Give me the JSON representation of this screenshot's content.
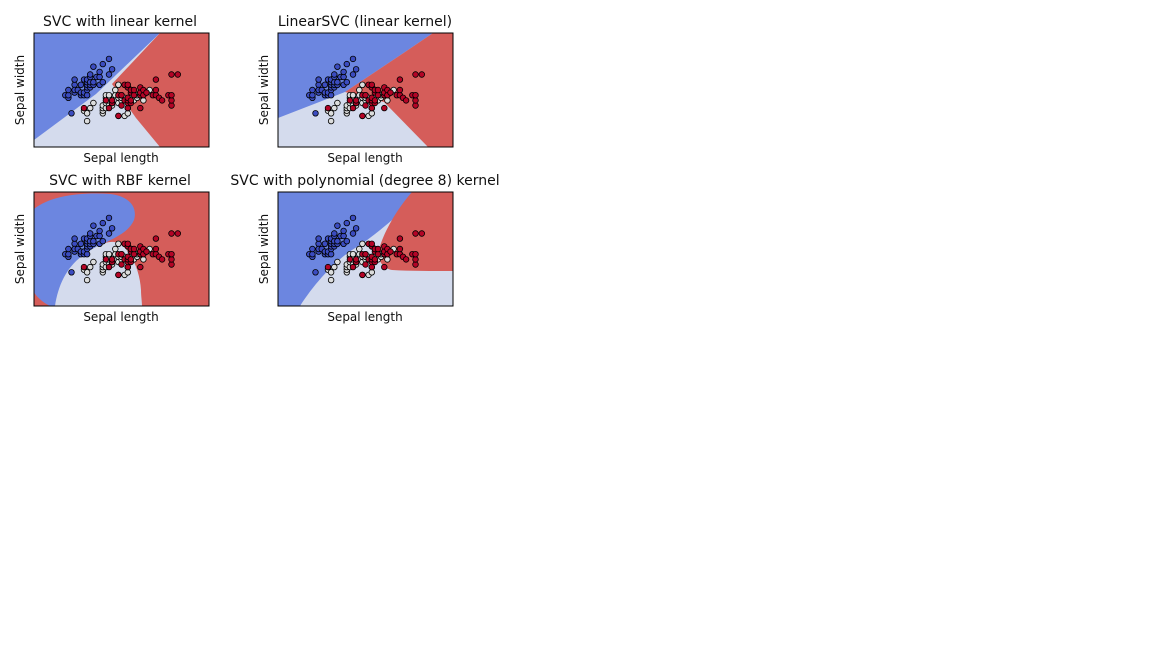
{
  "chart_data": [
    {
      "type": "scatter",
      "title": "SVC with linear kernel",
      "xlabel": "Sepal length",
      "ylabel": "Sepal width",
      "xticks": "none",
      "yticks": "none",
      "grid": false,
      "legend": "none",
      "regions": "decision-boundary contour (three classes)"
    },
    {
      "type": "scatter",
      "title": "LinearSVC (linear kernel)",
      "xlabel": "Sepal length",
      "ylabel": "Sepal width",
      "xticks": "none",
      "yticks": "none",
      "grid": false,
      "legend": "none",
      "regions": "decision-boundary contour (three classes)"
    },
    {
      "type": "scatter",
      "title": "SVC with RBF kernel",
      "xlabel": "Sepal length",
      "ylabel": "Sepal width",
      "xticks": "none",
      "yticks": "none",
      "grid": false,
      "legend": "none",
      "regions": "decision-boundary contour (three classes)"
    },
    {
      "type": "scatter",
      "title": "SVC with polynomial (degree 8) kernel",
      "xlabel": "Sepal length",
      "ylabel": "Sepal width",
      "xticks": "none",
      "yticks": "none",
      "grid": false,
      "legend": "none",
      "regions": "decision-boundary contour (three classes)"
    }
  ],
  "points": {
    "class0": [
      [
        4.3,
        3.0
      ],
      [
        4.4,
        2.9
      ],
      [
        4.4,
        3.0
      ],
      [
        4.4,
        3.2
      ],
      [
        4.5,
        2.3
      ],
      [
        4.6,
        3.1
      ],
      [
        4.6,
        3.4
      ],
      [
        4.6,
        3.6
      ],
      [
        4.6,
        3.2
      ],
      [
        4.7,
        3.2
      ],
      [
        4.8,
        3.0
      ],
      [
        4.8,
        3.4
      ],
      [
        4.8,
        3.1
      ],
      [
        4.9,
        3.0
      ],
      [
        4.9,
        3.1
      ],
      [
        4.9,
        3.6
      ],
      [
        5.0,
        3.0
      ],
      [
        5.0,
        3.2
      ],
      [
        5.0,
        3.3
      ],
      [
        5.0,
        3.4
      ],
      [
        5.0,
        3.5
      ],
      [
        5.0,
        3.6
      ],
      [
        5.1,
        3.3
      ],
      [
        5.1,
        3.4
      ],
      [
        5.1,
        3.5
      ],
      [
        5.1,
        3.7
      ],
      [
        5.1,
        3.8
      ],
      [
        5.2,
        3.4
      ],
      [
        5.2,
        3.5
      ],
      [
        5.2,
        4.1
      ],
      [
        5.3,
        3.7
      ],
      [
        5.4,
        3.4
      ],
      [
        5.4,
        3.7
      ],
      [
        5.4,
        3.9
      ],
      [
        5.5,
        3.5
      ],
      [
        5.5,
        4.2
      ],
      [
        5.7,
        3.8
      ],
      [
        5.7,
        4.4
      ],
      [
        5.8,
        4.0
      ]
    ],
    "class1": [
      [
        4.9,
        2.4
      ],
      [
        5.0,
        2.0
      ],
      [
        5.0,
        2.3
      ],
      [
        5.1,
        2.5
      ],
      [
        5.2,
        2.7
      ],
      [
        5.5,
        2.3
      ],
      [
        5.5,
        2.4
      ],
      [
        5.5,
        2.5
      ],
      [
        5.5,
        2.6
      ],
      [
        5.6,
        2.5
      ],
      [
        5.6,
        2.7
      ],
      [
        5.6,
        2.9
      ],
      [
        5.6,
        3.0
      ],
      [
        5.7,
        2.6
      ],
      [
        5.7,
        2.8
      ],
      [
        5.7,
        2.9
      ],
      [
        5.7,
        3.0
      ],
      [
        5.8,
        2.6
      ],
      [
        5.8,
        2.7
      ],
      [
        5.9,
        3.0
      ],
      [
        5.9,
        3.2
      ],
      [
        6.0,
        2.2
      ],
      [
        6.0,
        2.7
      ],
      [
        6.0,
        2.9
      ],
      [
        6.0,
        3.4
      ],
      [
        6.1,
        2.8
      ],
      [
        6.1,
        2.9
      ],
      [
        6.1,
        3.0
      ],
      [
        6.2,
        2.2
      ],
      [
        6.2,
        2.9
      ],
      [
        6.3,
        2.3
      ],
      [
        6.3,
        2.5
      ],
      [
        6.3,
        3.3
      ],
      [
        6.4,
        2.9
      ],
      [
        6.4,
        3.2
      ],
      [
        6.5,
        2.8
      ],
      [
        6.6,
        2.9
      ],
      [
        6.6,
        3.0
      ],
      [
        6.7,
        3.0
      ],
      [
        6.7,
        3.1
      ],
      [
        6.8,
        2.8
      ],
      [
        6.9,
        3.1
      ],
      [
        7.0,
        3.2
      ]
    ],
    "class2": [
      [
        4.9,
        2.5
      ],
      [
        5.6,
        2.8
      ],
      [
        5.7,
        2.5
      ],
      [
        5.8,
        2.7
      ],
      [
        5.8,
        2.8
      ],
      [
        6.0,
        2.2
      ],
      [
        6.0,
        3.0
      ],
      [
        6.1,
        2.6
      ],
      [
        6.1,
        3.0
      ],
      [
        6.2,
        2.8
      ],
      [
        6.2,
        3.4
      ],
      [
        6.3,
        2.5
      ],
      [
        6.3,
        2.7
      ],
      [
        6.3,
        2.8
      ],
      [
        6.3,
        2.9
      ],
      [
        6.3,
        3.3
      ],
      [
        6.3,
        3.4
      ],
      [
        6.4,
        2.7
      ],
      [
        6.4,
        2.8
      ],
      [
        6.4,
        3.1
      ],
      [
        6.4,
        3.2
      ],
      [
        6.5,
        3.0
      ],
      [
        6.5,
        3.2
      ],
      [
        6.7,
        2.5
      ],
      [
        6.7,
        3.0
      ],
      [
        6.7,
        3.1
      ],
      [
        6.7,
        3.3
      ],
      [
        6.8,
        3.0
      ],
      [
        6.8,
        3.2
      ],
      [
        6.9,
        3.1
      ],
      [
        7.1,
        3.0
      ],
      [
        7.2,
        3.0
      ],
      [
        7.2,
        3.2
      ],
      [
        7.2,
        3.6
      ],
      [
        7.3,
        2.9
      ],
      [
        7.4,
        2.8
      ],
      [
        7.6,
        3.0
      ],
      [
        7.7,
        2.6
      ],
      [
        7.7,
        2.8
      ],
      [
        7.7,
        3.0
      ],
      [
        7.7,
        3.8
      ],
      [
        7.9,
        3.8
      ]
    ]
  },
  "colors": {
    "class0": "#3b4cc0",
    "class1": "#dcdddd",
    "class2": "#b40426",
    "region0": "#6c86e0",
    "region1": "#d4dbed",
    "region2": "#d55d5a",
    "marker_edge": "#000000"
  }
}
